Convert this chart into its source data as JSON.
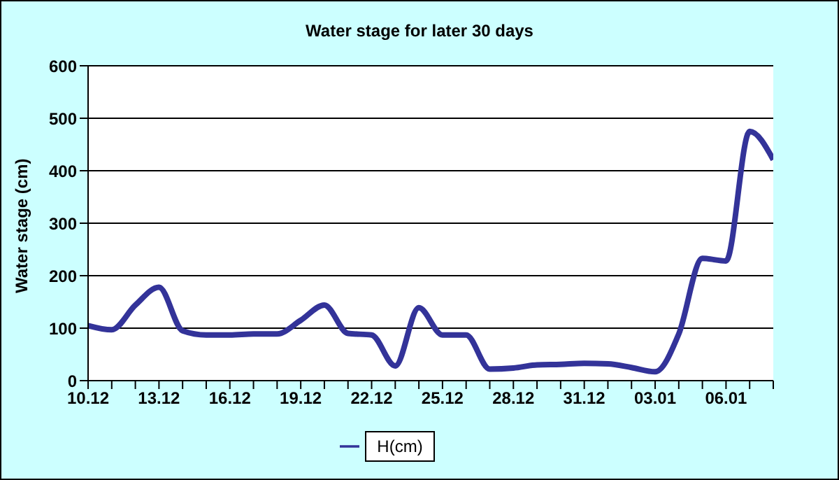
{
  "chart_data": {
    "type": "line",
    "title": "Water stage for later 30 days",
    "ylabel": "Water stage (cm)",
    "categories": [
      "10.12",
      null,
      null,
      "13.12",
      null,
      null,
      "16.12",
      null,
      null,
      "19.12",
      null,
      null,
      "22.12",
      null,
      null,
      "25.12",
      null,
      null,
      "28.12",
      null,
      null,
      "31.12",
      null,
      null,
      "03.01",
      null,
      null,
      "06.01",
      null,
      null
    ],
    "series": [
      {
        "name": "H(cm)",
        "color": "#333399",
        "values": [
          105,
          97,
          144,
          178,
          95,
          87,
          87,
          89,
          89,
          115,
          144,
          90,
          87,
          28,
          139,
          87,
          87,
          22,
          24,
          30,
          31,
          33,
          32,
          25,
          17,
          89,
          233,
          228,
          475,
          421
        ]
      }
    ],
    "ylim": [
      0,
      600
    ],
    "yticks": [
      0,
      100,
      200,
      300,
      400,
      500,
      600
    ],
    "grid": "y",
    "legend": "bottom",
    "marker": "none",
    "line_style": "solid"
  }
}
